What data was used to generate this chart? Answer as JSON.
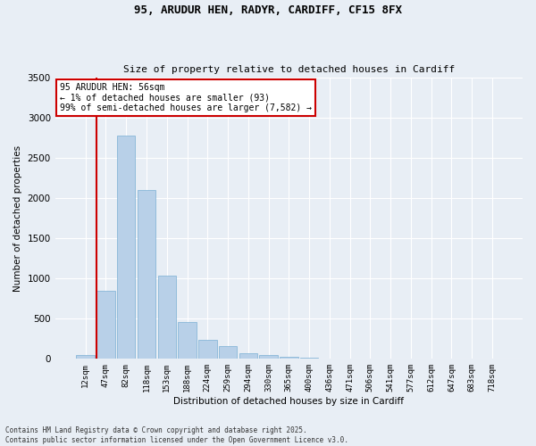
{
  "title_line1": "95, ARUDUR HEN, RADYR, CARDIFF, CF15 8FX",
  "title_line2": "Size of property relative to detached houses in Cardiff",
  "xlabel": "Distribution of detached houses by size in Cardiff",
  "ylabel": "Number of detached properties",
  "categories": [
    "12sqm",
    "47sqm",
    "82sqm",
    "118sqm",
    "153sqm",
    "188sqm",
    "224sqm",
    "259sqm",
    "294sqm",
    "330sqm",
    "365sqm",
    "400sqm",
    "436sqm",
    "471sqm",
    "506sqm",
    "541sqm",
    "577sqm",
    "612sqm",
    "647sqm",
    "683sqm",
    "718sqm"
  ],
  "values": [
    50,
    850,
    2780,
    2100,
    1040,
    460,
    235,
    155,
    65,
    45,
    30,
    20,
    8,
    5,
    3,
    2,
    1,
    1,
    0,
    0,
    0
  ],
  "bar_color": "#b8d0e8",
  "bar_edge_color": "#7aafd4",
  "ylim": [
    0,
    3500
  ],
  "yticks": [
    0,
    500,
    1000,
    1500,
    2000,
    2500,
    3000,
    3500
  ],
  "vline_color": "#cc0000",
  "annotation_text": "95 ARUDUR HEN: 56sqm\n← 1% of detached houses are smaller (93)\n99% of semi-detached houses are larger (7,582) →",
  "annotation_box_color": "#ffffff",
  "annotation_box_edge": "#cc0000",
  "footer_line1": "Contains HM Land Registry data © Crown copyright and database right 2025.",
  "footer_line2": "Contains public sector information licensed under the Open Government Licence v3.0.",
  "bg_color": "#e8eef5",
  "plot_bg_color": "#e8eef5",
  "grid_color": "#ffffff"
}
